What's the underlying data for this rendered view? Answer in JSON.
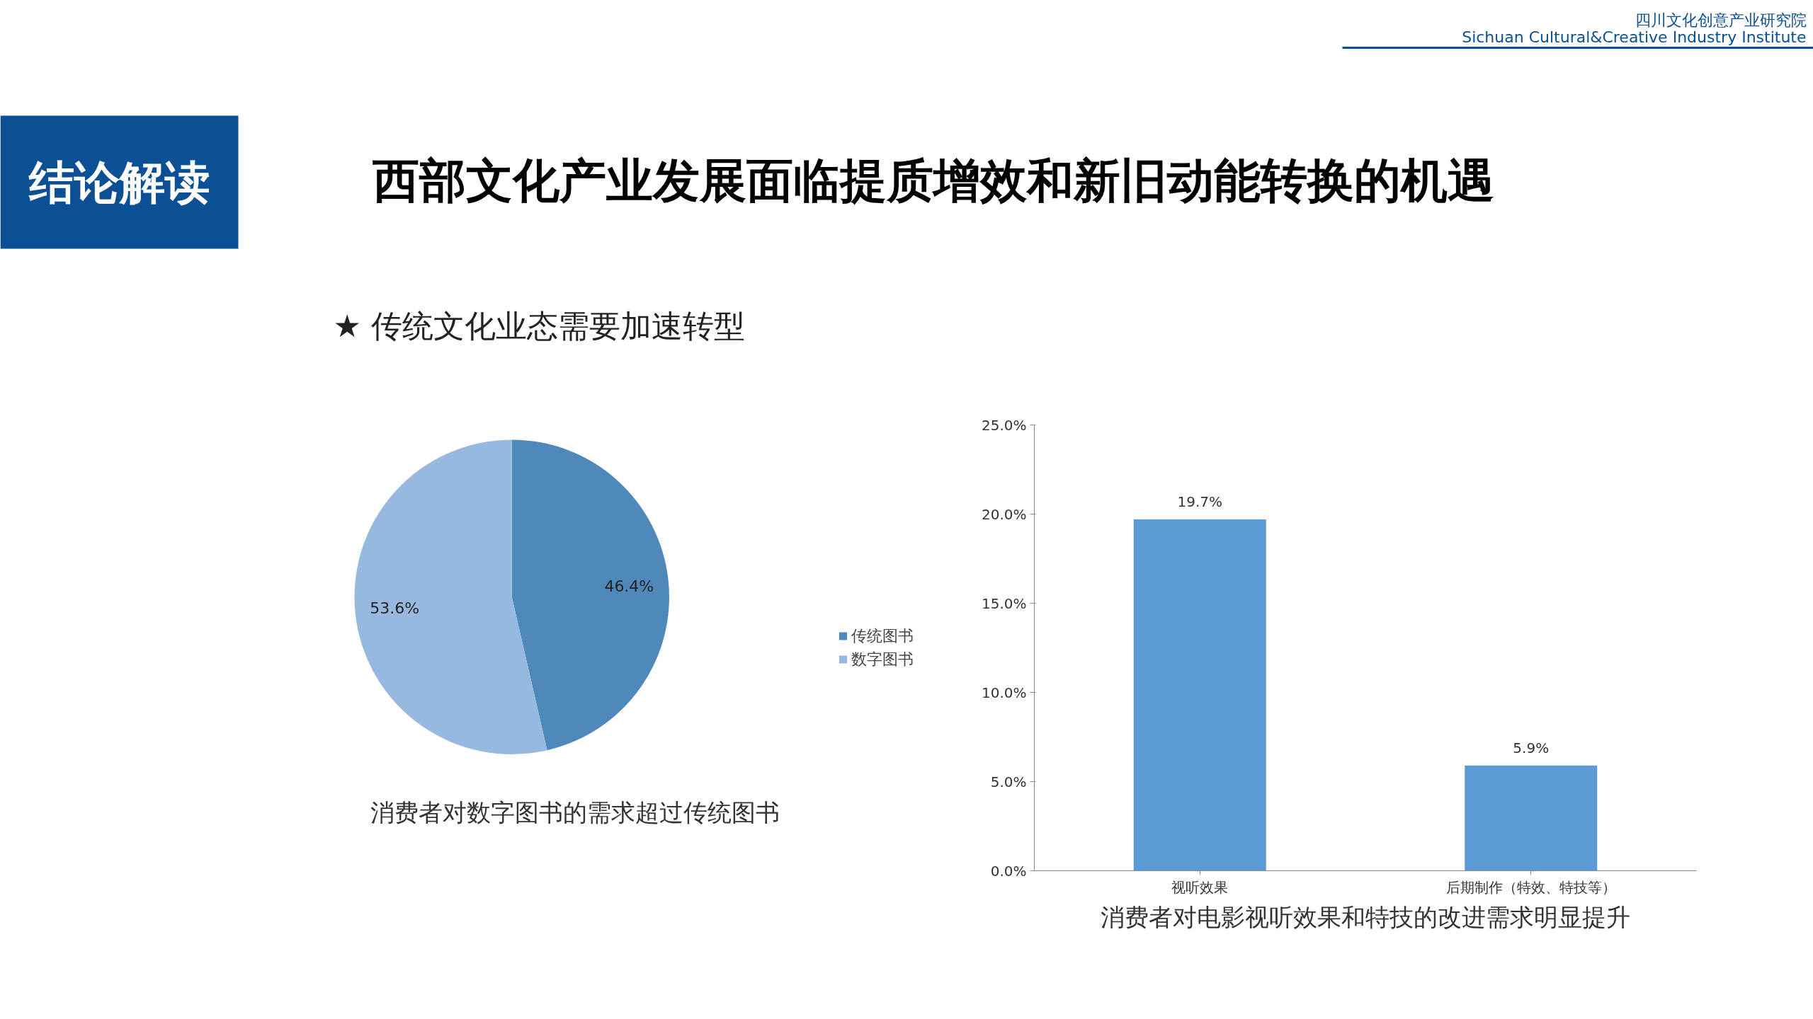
{
  "chart_data": [
    {
      "type": "pie",
      "title": "西部文化产业发展面临提质增效和新旧动能转换的机遇",
      "subtitle": "★ 传统文化业态需要加速转型",
      "annotations": [
        "结论解读",
        "四川文化创意产业研究院",
        "Sichuan Cultural&Creative Industry Institute",
        "消费者对数字图书的需求超过传统图书"
      ],
      "categories": [
        "传统图书",
        "数字图书"
      ],
      "values": [
        46.4,
        53.6
      ],
      "colors": [
        "#4f88bb",
        "#98b9df"
      ],
      "value_labels": [
        "46.4%",
        "53.6%"
      ],
      "legend": "right"
    },
    {
      "type": "bar",
      "categories": [
        "视听效果",
        "后期制作（特效、特技等）"
      ],
      "values": [
        19.7,
        5.9
      ],
      "color": "#5b9bd5",
      "value_labels": [
        "19.7%",
        "5.9%"
      ],
      "ylim": [
        0,
        25
      ],
      "yticks": [
        {
          "value": 0,
          "label": "0.0%"
        },
        {
          "value": 5,
          "label": "5.0%"
        },
        {
          "value": 10,
          "label": "10.0%"
        },
        {
          "value": 15,
          "label": "15.0%"
        },
        {
          "value": 20,
          "label": "20.0%"
        },
        {
          "value": 25,
          "label": "25.0%"
        }
      ],
      "grid": false,
      "annotations": [
        "消费者对电影视听效果和特技的改进需求明显提升"
      ]
    }
  ]
}
